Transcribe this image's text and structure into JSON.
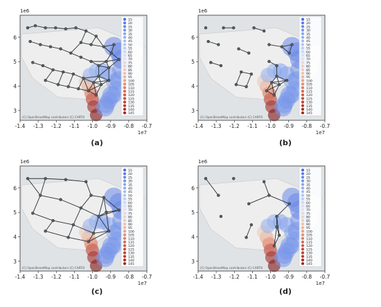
{
  "figure": {
    "panel_labels": [
      "(a)",
      "(b)",
      "(c)",
      "(d)"
    ],
    "exponent_y": "1e6",
    "exponent_x": "1e7",
    "map_credit": "(C) OpenStreetMap contributors (C) CARTO",
    "legend_values": [
      15,
      20,
      25,
      30,
      35,
      40,
      45,
      50,
      55,
      60,
      65,
      70,
      75,
      80,
      85,
      90,
      95,
      100,
      105,
      110,
      115,
      120,
      125,
      130,
      135,
      140,
      145
    ]
  },
  "chart_data": [
    {
      "type": "scatter",
      "panel": "(a)",
      "x_ticks": [
        -1.4,
        -1.3,
        -1.2,
        -1.1,
        -1.0,
        -0.9,
        -0.8,
        -0.7
      ],
      "y_ticks": [
        3,
        4,
        5,
        6
      ],
      "xlim": [
        -1.4,
        -0.7
      ],
      "ylim": [
        2.6,
        6.9
      ],
      "x_scale": "1e7",
      "y_scale": "1e6",
      "legend_position": "right",
      "legend_entries": [
        15,
        20,
        25,
        30,
        35,
        40,
        45,
        50,
        55,
        60,
        65,
        70,
        75,
        80,
        85,
        90,
        95,
        100,
        105,
        110,
        115,
        120,
        125,
        130,
        135,
        140,
        145
      ]
    },
    {
      "type": "scatter",
      "panel": "(b)",
      "x_ticks": [
        -1.4,
        -1.3,
        -1.2,
        -1.1,
        -1.0,
        -0.9,
        -0.8,
        -0.7
      ],
      "y_ticks": [
        3,
        4,
        5,
        6
      ],
      "xlim": [
        -1.4,
        -0.7
      ],
      "ylim": [
        2.6,
        6.9
      ],
      "x_scale": "1e7",
      "y_scale": "1e6",
      "legend_position": "right",
      "legend_entries": [
        15,
        20,
        25,
        30,
        35,
        40,
        45,
        50,
        55,
        60,
        65,
        70,
        75,
        80,
        85,
        90,
        95,
        100,
        105,
        110,
        115,
        120,
        125,
        130,
        135,
        140,
        145
      ]
    },
    {
      "type": "scatter",
      "panel": "(c)",
      "x_ticks": [
        -1.4,
        -1.3,
        -1.2,
        -1.1,
        -1.0,
        -0.9,
        -0.8,
        -0.7
      ],
      "y_ticks": [
        3,
        4,
        5,
        6
      ],
      "xlim": [
        -1.4,
        -0.7
      ],
      "ylim": [
        2.6,
        6.9
      ],
      "x_scale": "1e7",
      "y_scale": "1e6",
      "legend_position": "right",
      "legend_entries": [
        15,
        20,
        25,
        30,
        35,
        40,
        45,
        50,
        55,
        60,
        65,
        70,
        75,
        80,
        85,
        90,
        95,
        100,
        105,
        110,
        115,
        120,
        125,
        130,
        135,
        140,
        145
      ]
    },
    {
      "type": "scatter",
      "panel": "(d)",
      "x_ticks": [
        -1.4,
        -1.3,
        -1.2,
        -1.1,
        -1.0,
        -0.9,
        -0.8,
        -0.7
      ],
      "y_ticks": [
        3,
        4,
        5,
        6
      ],
      "xlim": [
        -1.4,
        -0.7
      ],
      "ylim": [
        2.6,
        6.9
      ],
      "x_scale": "1e7",
      "y_scale": "1e6",
      "legend_position": "right",
      "legend_entries": [
        15,
        20,
        25,
        30,
        35,
        40,
        45,
        50,
        55,
        60,
        65,
        70,
        75,
        80,
        85,
        90,
        95,
        100,
        105,
        110,
        115,
        120,
        125,
        130,
        135,
        140,
        145
      ]
    }
  ]
}
